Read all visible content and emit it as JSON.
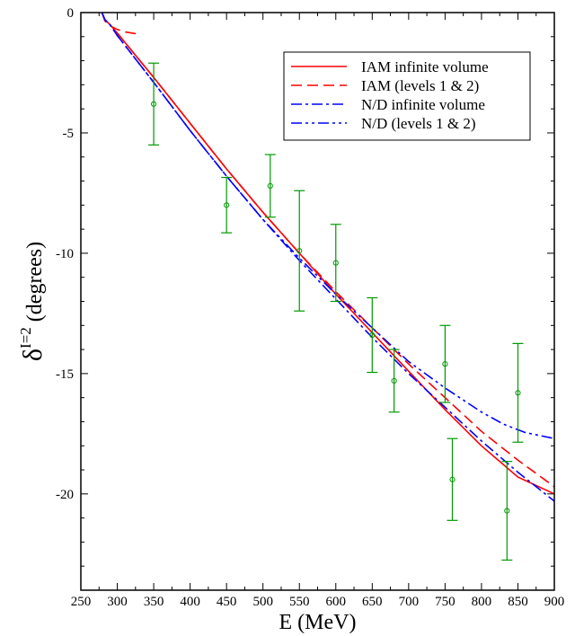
{
  "chart_data": {
    "type": "line",
    "xlabel": "E (MeV)",
    "ylabel_main": "δ",
    "ylabel_sup": "I=2",
    "ylabel_rest": " (degrees)",
    "xlim": [
      250,
      900
    ],
    "ylim": [
      -24,
      0
    ],
    "x_ticks": [
      250,
      300,
      350,
      400,
      450,
      500,
      550,
      600,
      650,
      700,
      750,
      800,
      850,
      900
    ],
    "x_tick_labels": [
      "250",
      "300",
      "350",
      "400",
      "450",
      "500",
      "550",
      "600",
      "650",
      "700",
      "750",
      "800",
      "850",
      "900"
    ],
    "y_ticks": [
      0,
      -5,
      -10,
      -15,
      -20
    ],
    "y_tick_labels": [
      "0",
      "-5",
      "-10",
      "-15",
      "-20"
    ],
    "legend_position": "top-right",
    "series": [
      {
        "name": "IAM infinite volume",
        "style": "solid",
        "color": "#ff0000",
        "x": [
          279,
          283,
          290,
          300,
          350,
          400,
          450,
          500,
          550,
          600,
          650,
          700,
          750,
          800,
          850,
          900
        ],
        "y": [
          0,
          -0.3,
          -0.5,
          -0.85,
          -2.7,
          -4.6,
          -6.5,
          -8.3,
          -10.0,
          -11.7,
          -13.3,
          -14.9,
          -16.5,
          -18.0,
          -19.3,
          -20.0
        ]
      },
      {
        "name": "IAM (levels 1 & 2)",
        "style": "dashed",
        "color": "#ff0000",
        "x": [
          279,
          283,
          290,
          300,
          310,
          320,
          330
        ],
        "y": [
          0,
          -0.35,
          -0.55,
          -0.7,
          -0.8,
          -0.85,
          -0.9
        ],
        "x2": [
          300,
          350,
          400,
          450,
          500,
          550,
          600,
          650,
          700,
          750,
          800,
          850,
          900
        ],
        "y2": [
          -0.85,
          -2.7,
          -4.6,
          -6.5,
          -8.3,
          -10.0,
          -11.6,
          -13.1,
          -14.6,
          -16.0,
          -17.4,
          -18.6,
          -19.7
        ]
      },
      {
        "name": "N/D infinite volume",
        "style": "dashdot",
        "color": "#0000ff",
        "x": [
          279,
          283,
          290,
          300,
          350,
          400,
          450,
          500,
          550,
          600,
          650,
          700,
          750,
          800,
          850,
          900
        ],
        "y": [
          0,
          -0.3,
          -0.5,
          -0.95,
          -2.9,
          -4.9,
          -6.8,
          -8.6,
          -10.3,
          -11.9,
          -13.5,
          -15.0,
          -16.4,
          -17.8,
          -19.1,
          -20.3
        ]
      },
      {
        "name": "N/D (levels 1 & 2)",
        "style": "dashdotdot",
        "color": "#0000ff",
        "x": [
          279,
          283,
          290,
          300,
          350,
          400,
          450,
          500,
          550,
          600,
          650,
          700,
          750,
          780,
          800,
          830,
          860,
          900
        ],
        "y": [
          0,
          -0.3,
          -0.5,
          -0.95,
          -2.9,
          -4.9,
          -6.8,
          -8.6,
          -10.2,
          -11.7,
          -13.1,
          -14.5,
          -15.6,
          -16.2,
          -16.6,
          -17.1,
          -17.45,
          -17.7
        ]
      },
      {
        "name": "",
        "style": "errorbar",
        "color": "#009900",
        "x": [
          350,
          450,
          510,
          550,
          600,
          650,
          680,
          750,
          760,
          835,
          850
        ],
        "y": [
          -3.8,
          -8.0,
          -7.2,
          -9.9,
          -10.4,
          -13.4,
          -15.3,
          -14.6,
          -19.4,
          -20.7,
          -15.8
        ],
        "err": [
          1.7,
          1.15,
          1.3,
          2.5,
          1.6,
          1.55,
          1.3,
          1.6,
          1.7,
          2.05,
          2.05
        ]
      }
    ]
  }
}
